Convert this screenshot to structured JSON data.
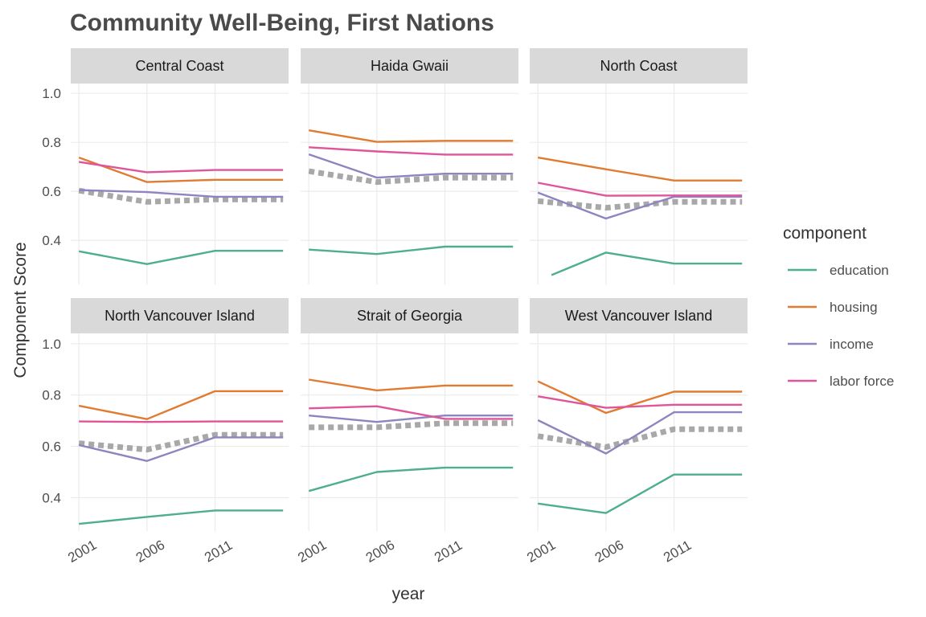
{
  "chart_data": {
    "type": "line",
    "title": "Community Well-Being, First Nations",
    "xlabel": "year",
    "ylabel": "Component Score",
    "x_ticks": [
      2001,
      2006,
      2011
    ],
    "y_ticks": [
      0.4,
      0.6,
      0.8,
      1.0
    ],
    "y_tick_labels": [
      "0.4",
      "0.6",
      "0.8",
      "1.0"
    ],
    "xlim": [
      2000.4,
      2016.4
    ],
    "ylim_top_row": [
      0.22,
      1.04
    ],
    "ylim_bottom_row": [
      0.27,
      1.04
    ],
    "legend": {
      "title": "component",
      "position": "right",
      "entries": [
        "education",
        "housing",
        "income",
        "labor force"
      ]
    },
    "series_colors": {
      "education": "#4daf8b",
      "housing": "#e07b30",
      "income": "#8e84bf",
      "labor force": "#e0559a",
      "overall": "#a8a8a8"
    },
    "panels": [
      {
        "name": "Central Coast",
        "series": [
          {
            "name": "education",
            "x": [
              2001,
              2006,
              2011,
              2016
            ],
            "values": [
              0.355,
              0.303,
              0.357,
              0.357
            ]
          },
          {
            "name": "housing",
            "x": [
              2001,
              2006,
              2011,
              2016
            ],
            "values": [
              0.738,
              0.638,
              0.647,
              0.647
            ]
          },
          {
            "name": "income",
            "x": [
              2001,
              2006,
              2011,
              2016
            ],
            "values": [
              0.605,
              0.597,
              0.578,
              0.578
            ]
          },
          {
            "name": "labor force",
            "x": [
              2001,
              2006,
              2011,
              2016
            ],
            "values": [
              0.72,
              0.678,
              0.687,
              0.687
            ]
          }
        ],
        "overall": {
          "x": [
            2001,
            2006,
            2011,
            2016
          ],
          "values": [
            0.603,
            0.557,
            0.567,
            0.567
          ]
        }
      },
      {
        "name": "Haida Gwaii",
        "series": [
          {
            "name": "education",
            "x": [
              2001,
              2006,
              2011,
              2016
            ],
            "values": [
              0.362,
              0.344,
              0.374,
              0.374
            ]
          },
          {
            "name": "housing",
            "x": [
              2001,
              2006,
              2011,
              2016
            ],
            "values": [
              0.849,
              0.802,
              0.806,
              0.806
            ]
          },
          {
            "name": "income",
            "x": [
              2001,
              2006,
              2011,
              2016
            ],
            "values": [
              0.751,
              0.656,
              0.672,
              0.672
            ]
          },
          {
            "name": "labor force",
            "x": [
              2001,
              2006,
              2011,
              2016
            ],
            "values": [
              0.78,
              0.763,
              0.75,
              0.75
            ]
          }
        ],
        "overall": {
          "x": [
            2001,
            2006,
            2011,
            2016
          ],
          "values": [
            0.682,
            0.638,
            0.656,
            0.656
          ]
        }
      },
      {
        "name": "North Coast",
        "series": [
          {
            "name": "education",
            "x": [
              2002,
              2006,
              2011,
              2016
            ],
            "values": [
              0.258,
              0.35,
              0.305,
              0.305
            ]
          },
          {
            "name": "housing",
            "x": [
              2001,
              2006,
              2011,
              2016
            ],
            "values": [
              0.738,
              0.69,
              0.644,
              0.644
            ]
          },
          {
            "name": "income",
            "x": [
              2001,
              2006,
              2011,
              2016
            ],
            "values": [
              0.595,
              0.489,
              0.578,
              0.578
            ]
          },
          {
            "name": "labor force",
            "x": [
              2001,
              2006,
              2011,
              2016
            ],
            "values": [
              0.635,
              0.582,
              0.583,
              0.583
            ]
          }
        ],
        "overall": {
          "x": [
            2001,
            2006,
            2011,
            2016
          ],
          "values": [
            0.56,
            0.533,
            0.557,
            0.557
          ]
        }
      },
      {
        "name": "North Vancouver Island",
        "series": [
          {
            "name": "education",
            "x": [
              2001,
              2006,
              2011,
              2016
            ],
            "values": [
              0.298,
              0.325,
              0.35,
              0.35
            ]
          },
          {
            "name": "housing",
            "x": [
              2001,
              2006,
              2011,
              2016
            ],
            "values": [
              0.758,
              0.706,
              0.815,
              0.815
            ]
          },
          {
            "name": "income",
            "x": [
              2001,
              2006,
              2011,
              2016
            ],
            "values": [
              0.605,
              0.543,
              0.635,
              0.635
            ]
          },
          {
            "name": "labor force",
            "x": [
              2001,
              2006,
              2011,
              2016
            ],
            "values": [
              0.697,
              0.695,
              0.697,
              0.697
            ]
          }
        ],
        "overall": {
          "x": [
            2001,
            2006,
            2011,
            2016
          ],
          "values": [
            0.612,
            0.587,
            0.645,
            0.645
          ]
        }
      },
      {
        "name": "Strait of Georgia",
        "series": [
          {
            "name": "education",
            "x": [
              2001,
              2006,
              2011,
              2016
            ],
            "values": [
              0.426,
              0.5,
              0.517,
              0.517
            ]
          },
          {
            "name": "housing",
            "x": [
              2001,
              2006,
              2011,
              2016
            ],
            "values": [
              0.86,
              0.818,
              0.837,
              0.837
            ]
          },
          {
            "name": "income",
            "x": [
              2001,
              2006,
              2011,
              2016
            ],
            "values": [
              0.72,
              0.695,
              0.72,
              0.72
            ]
          },
          {
            "name": "labor force",
            "x": [
              2001,
              2006,
              2011,
              2016
            ],
            "values": [
              0.748,
              0.756,
              0.707,
              0.707
            ]
          }
        ],
        "overall": {
          "x": [
            2001,
            2006,
            2011,
            2016
          ],
          "values": [
            0.674,
            0.674,
            0.69,
            0.69
          ]
        }
      },
      {
        "name": "West Vancouver Island",
        "series": [
          {
            "name": "education",
            "x": [
              2001,
              2006,
              2011,
              2016
            ],
            "values": [
              0.377,
              0.34,
              0.49,
              0.49
            ]
          },
          {
            "name": "housing",
            "x": [
              2001,
              2006,
              2011,
              2016
            ],
            "values": [
              0.853,
              0.73,
              0.813,
              0.813
            ]
          },
          {
            "name": "income",
            "x": [
              2001,
              2006,
              2011,
              2016
            ],
            "values": [
              0.702,
              0.572,
              0.733,
              0.733
            ]
          },
          {
            "name": "labor force",
            "x": [
              2001,
              2006,
              2011,
              2016
            ],
            "values": [
              0.795,
              0.75,
              0.762,
              0.762
            ]
          }
        ],
        "overall": {
          "x": [
            2001,
            2006,
            2011,
            2016
          ],
          "values": [
            0.64,
            0.597,
            0.667,
            0.667
          ]
        }
      }
    ]
  }
}
